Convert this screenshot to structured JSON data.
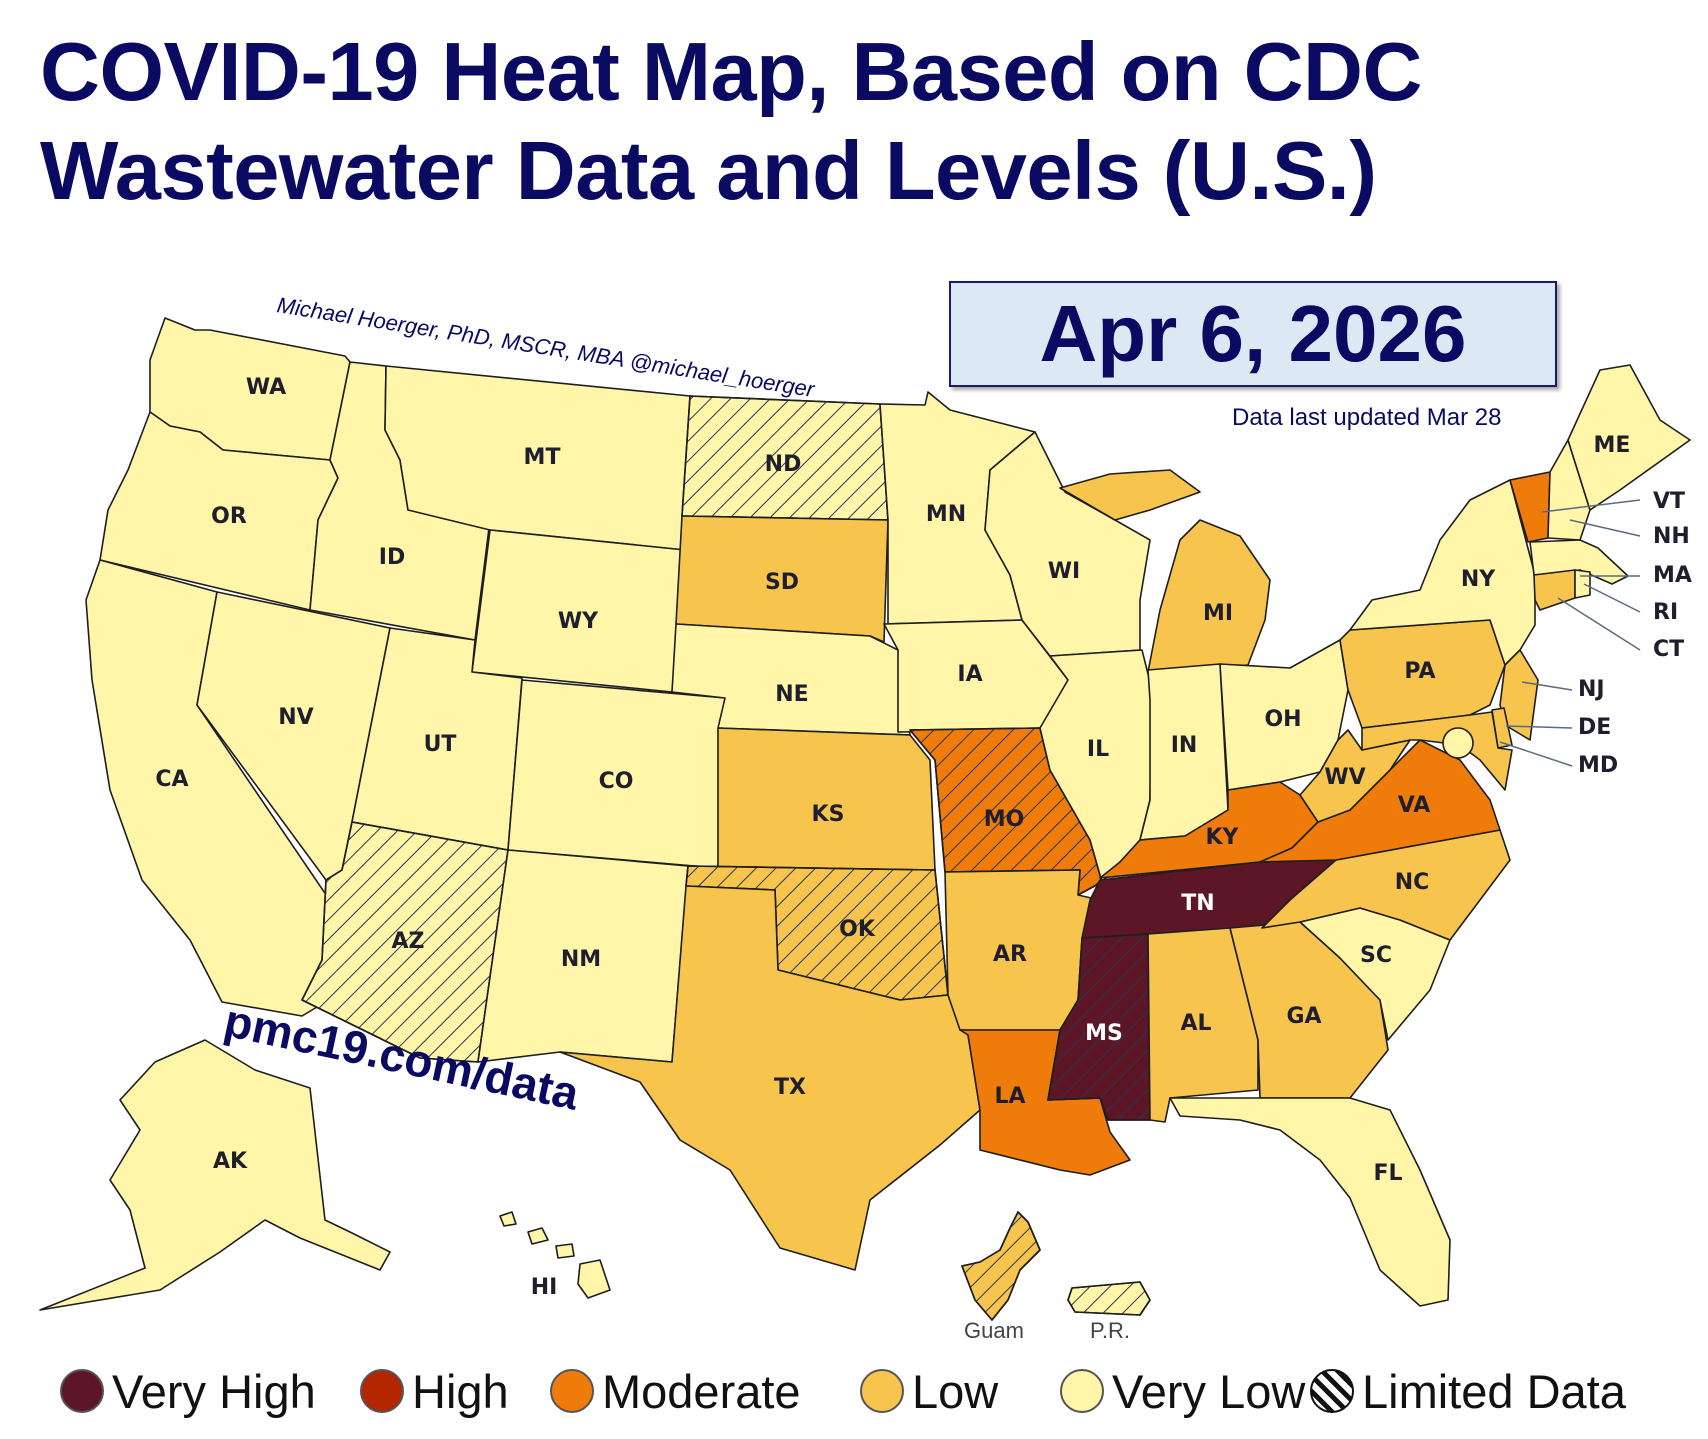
{
  "title": {
    "line1": "COVID-19 Heat Map, Based on CDC",
    "line2": "Wastewater Data and Levels (U.S.)"
  },
  "date": "Apr 6, 2026",
  "updated": "Data last updated Mar 28",
  "credit": "Michael Hoerger, PhD, MSCR, MBA  @michael_hoerger",
  "website": "pmc19.com/data",
  "colors": {
    "very_high": "#5c1626",
    "high": "#b32600",
    "moderate": "#ef7c0a",
    "low": "#f7c54d",
    "very_low": "#fff6a9"
  },
  "legend": [
    {
      "label": "Very High",
      "level": "very_high"
    },
    {
      "label": "High",
      "level": "high"
    },
    {
      "label": "Moderate",
      "level": "moderate"
    },
    {
      "label": "Low",
      "level": "low"
    },
    {
      "label": "Very Low",
      "level": "very_low"
    },
    {
      "label": "Limited Data",
      "level": "limited"
    }
  ],
  "states": {
    "WA": {
      "level": "very_low",
      "limited": false
    },
    "OR": {
      "level": "very_low",
      "limited": false
    },
    "CA": {
      "level": "very_low",
      "limited": false
    },
    "ID": {
      "level": "very_low",
      "limited": false
    },
    "NV": {
      "level": "very_low",
      "limited": false
    },
    "MT": {
      "level": "very_low",
      "limited": false
    },
    "WY": {
      "level": "very_low",
      "limited": false
    },
    "UT": {
      "level": "very_low",
      "limited": false
    },
    "AZ": {
      "level": "very_low",
      "limited": true
    },
    "CO": {
      "level": "very_low",
      "limited": false
    },
    "NM": {
      "level": "very_low",
      "limited": false
    },
    "ND": {
      "level": "very_low",
      "limited": true
    },
    "SD": {
      "level": "low",
      "limited": false
    },
    "NE": {
      "level": "very_low",
      "limited": false
    },
    "KS": {
      "level": "low",
      "limited": false
    },
    "OK": {
      "level": "low",
      "limited": true
    },
    "TX": {
      "level": "low",
      "limited": false
    },
    "MN": {
      "level": "very_low",
      "limited": false
    },
    "IA": {
      "level": "very_low",
      "limited": false
    },
    "MO": {
      "level": "moderate",
      "limited": true
    },
    "AR": {
      "level": "low",
      "limited": false
    },
    "LA": {
      "level": "moderate",
      "limited": false
    },
    "WI": {
      "level": "very_low",
      "limited": false
    },
    "IL": {
      "level": "very_low",
      "limited": false
    },
    "MI": {
      "level": "low",
      "limited": false
    },
    "IN": {
      "level": "very_low",
      "limited": false
    },
    "OH": {
      "level": "very_low",
      "limited": false
    },
    "KY": {
      "level": "moderate",
      "limited": false
    },
    "TN": {
      "level": "very_high",
      "limited": false
    },
    "MS": {
      "level": "very_high",
      "limited": true
    },
    "AL": {
      "level": "low",
      "limited": false
    },
    "GA": {
      "level": "low",
      "limited": false
    },
    "FL": {
      "level": "very_low",
      "limited": false
    },
    "SC": {
      "level": "very_low",
      "limited": false
    },
    "NC": {
      "level": "low",
      "limited": false
    },
    "VA": {
      "level": "moderate",
      "limited": false
    },
    "WV": {
      "level": "low",
      "limited": false
    },
    "PA": {
      "level": "low",
      "limited": false
    },
    "NY": {
      "level": "very_low",
      "limited": false
    },
    "VT": {
      "level": "moderate",
      "limited": false
    },
    "NH": {
      "level": "very_low",
      "limited": false
    },
    "ME": {
      "level": "very_low",
      "limited": false
    },
    "MA": {
      "level": "very_low",
      "limited": false
    },
    "RI": {
      "level": "very_low",
      "limited": false
    },
    "CT": {
      "level": "low",
      "limited": false
    },
    "NJ": {
      "level": "low",
      "limited": false
    },
    "DE": {
      "level": "low",
      "limited": false
    },
    "MD": {
      "level": "low",
      "limited": false
    },
    "DC": {
      "level": "very_low",
      "limited": false
    },
    "AK": {
      "level": "very_low",
      "limited": false
    },
    "HI": {
      "level": "very_low",
      "limited": false
    },
    "Guam": {
      "level": "low",
      "limited": true
    },
    "P.R.": {
      "level": "very_low",
      "limited": true
    }
  }
}
